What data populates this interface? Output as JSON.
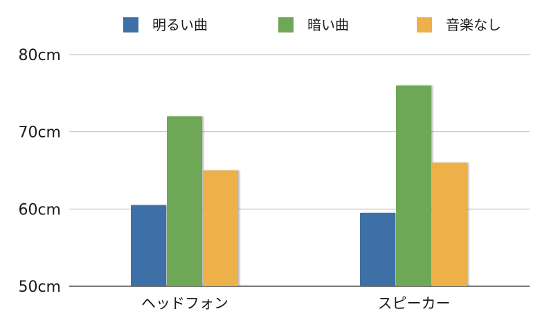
{
  "chart_data": {
    "type": "bar",
    "title": "",
    "xlabel": "",
    "ylabel": "",
    "categories": [
      "ヘッドフォン",
      "スピーカー"
    ],
    "series": [
      {
        "name": "明るい曲",
        "values": [
          60.5,
          59.5
        ],
        "color": "#3e6fa7"
      },
      {
        "name": "暗い曲",
        "values": [
          72,
          76
        ],
        "color": "#6ea856"
      },
      {
        "name": "音楽なし",
        "values": [
          65,
          66
        ],
        "color": "#eeb04a"
      }
    ],
    "ylim": [
      50,
      80
    ],
    "yticks": [
      50,
      60,
      70,
      80
    ],
    "ytick_labels": [
      "50cm",
      "60cm",
      "70cm",
      "80cm"
    ],
    "grid": true,
    "legend_position": "top"
  }
}
